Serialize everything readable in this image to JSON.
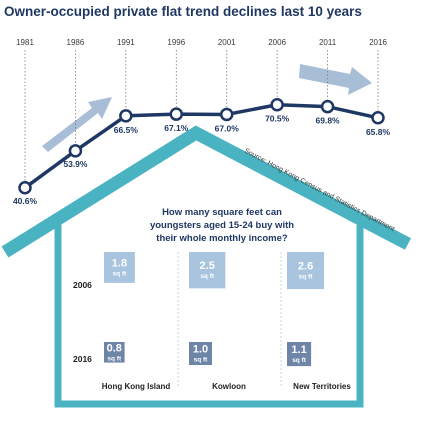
{
  "chart_data": [
    {
      "type": "line",
      "title": "Owner-occupied private flat trend declines last 10 years",
      "x": [
        "1981",
        "1986",
        "1991",
        "1996",
        "2001",
        "2006",
        "2011",
        "2016"
      ],
      "values": [
        40.6,
        53.9,
        66.5,
        67.1,
        67.0,
        70.5,
        69.8,
        65.8
      ],
      "value_labels": [
        "40.6%",
        "53.9%",
        "66.5%",
        "67.1%",
        "67.0%",
        "70.5%",
        "69.8%",
        "65.8%"
      ],
      "ylim": [
        38,
        74
      ],
      "source": "Source: Hong Kong Census and Statistics Department",
      "colors": {
        "line": "#1f3863",
        "arrow": "#a8bdd6",
        "house": "#4ab3c1"
      }
    },
    {
      "type": "bar",
      "title": "How many square feet can youngsters aged 15-24 buy with their whole monthly income?",
      "categories": [
        "Hong Kong Island",
        "Kowloon",
        "New Territories"
      ],
      "unit": "sq ft",
      "series": [
        {
          "name": "2006",
          "values": [
            1.8,
            2.5,
            2.6
          ],
          "labels": [
            "1.8",
            "2.5",
            "2.6"
          ]
        },
        {
          "name": "2016",
          "values": [
            0.8,
            1.0,
            1.1
          ],
          "labels": [
            "0.8",
            "1.0",
            "1.1"
          ]
        }
      ],
      "colors": {
        "2006": "#a8c4de",
        "2016": "#6f85a8"
      }
    }
  ]
}
